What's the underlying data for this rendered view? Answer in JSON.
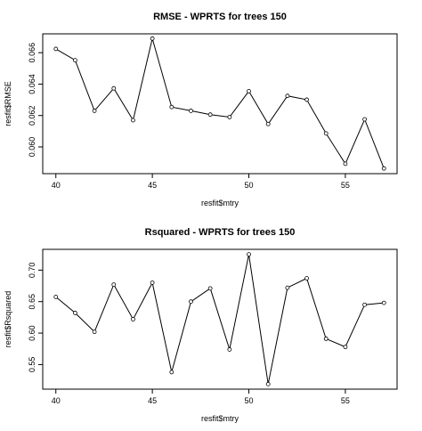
{
  "chart_data": [
    {
      "type": "line",
      "title": "RMSE - WPRTS for trees 150",
      "x_label": "resfit$mtry",
      "y_label": "resfit$RMSE",
      "x": [
        40,
        41,
        42,
        43,
        44,
        45,
        46,
        47,
        48,
        49,
        50,
        51,
        52,
        53,
        54,
        55,
        56,
        57
      ],
      "values": [
        0.06624,
        0.06552,
        0.0623,
        0.06373,
        0.0617,
        0.0669,
        0.06254,
        0.0623,
        0.06206,
        0.0619,
        0.06355,
        0.06146,
        0.06325,
        0.06301,
        0.06086,
        0.05893,
        0.06176,
        0.05863
      ],
      "xlim": [
        39.32,
        57.68
      ],
      "ylim": [
        0.0583,
        0.0672
      ],
      "xticks": [
        40,
        45,
        50,
        55
      ],
      "yticks": [
        {
          "value": 0.06,
          "label": "0.060"
        },
        {
          "value": 0.062,
          "label": "0.062"
        },
        {
          "value": 0.064,
          "label": "0.064"
        },
        {
          "value": 0.066,
          "label": "0.066"
        }
      ],
      "color": "#000000"
    },
    {
      "type": "line",
      "title": "Rsquared - WPRTS for trees 150",
      "x_label": "resfit$mtry",
      "y_label": "resfit$Rsquared",
      "x": [
        40,
        41,
        42,
        43,
        44,
        45,
        46,
        47,
        48,
        49,
        50,
        51,
        52,
        53,
        54,
        55,
        56,
        57
      ],
      "values": [
        0.6575,
        0.632,
        0.602,
        0.677,
        0.622,
        0.68,
        0.538,
        0.65,
        0.671,
        0.574,
        0.725,
        0.519,
        0.672,
        0.687,
        0.591,
        0.578,
        0.645,
        0.648
      ],
      "xlim": [
        39.32,
        57.68
      ],
      "ylim": [
        0.511,
        0.733
      ],
      "xticks": [
        40,
        45,
        50,
        55
      ],
      "yticks": [
        0.55,
        {
          "value": 0.6,
          "label": "0.60"
        },
        0.65,
        {
          "value": 0.7,
          "label": "0.70"
        }
      ],
      "color": "#000000"
    }
  ]
}
